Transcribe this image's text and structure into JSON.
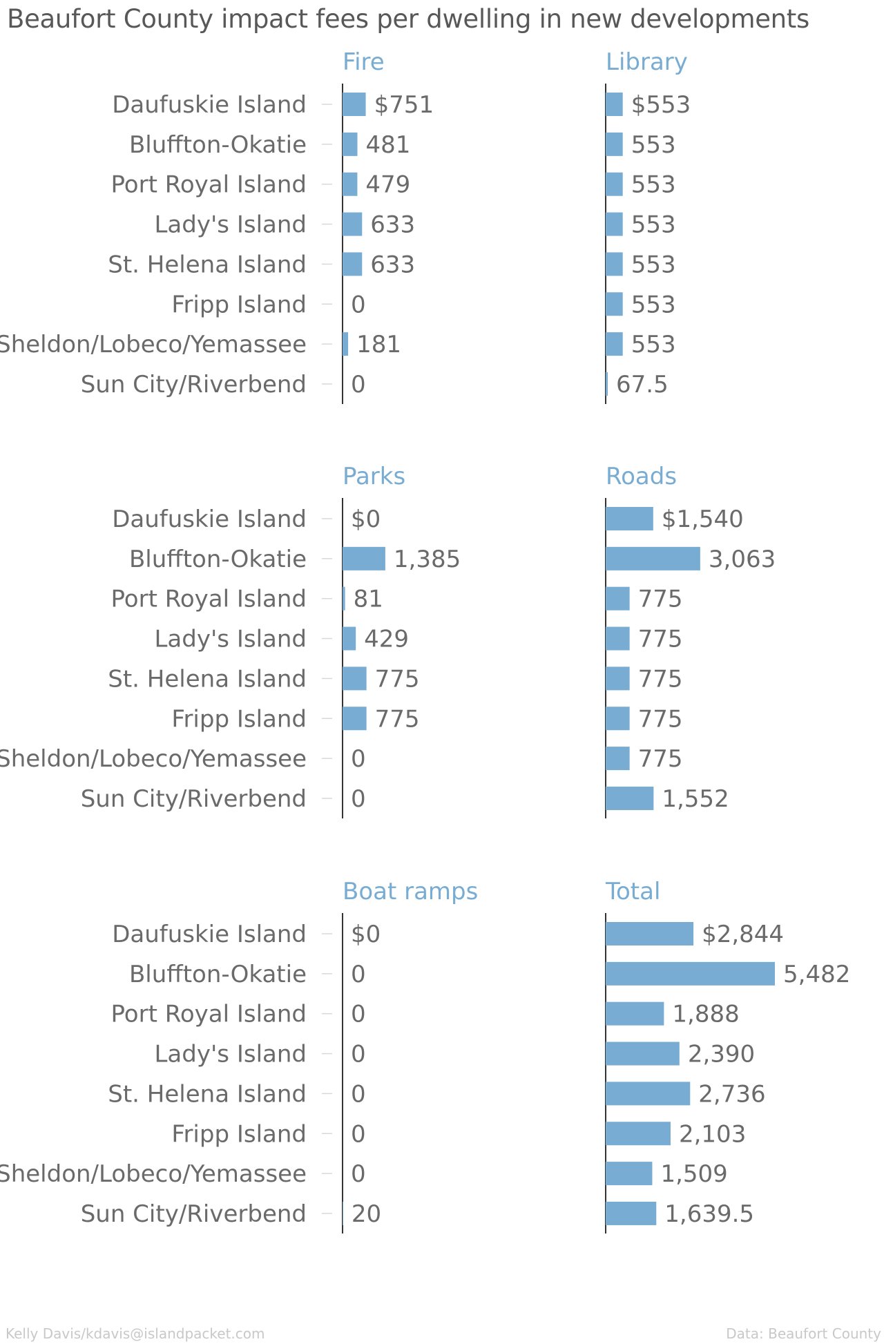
{
  "chart_data": {
    "type": "bar",
    "title": "Beaufort County impact fees per dwelling in new developments",
    "categories": [
      "Daufuskie Island",
      "Bluffton-Okatie",
      "Port Royal Island",
      "Lady's Island",
      "St. Helena Island",
      "Fripp Island",
      "Sheldon/Lobeco/Yemassee",
      "Sun City/Riverbend"
    ],
    "series": [
      {
        "name": "Fire",
        "values": [
          751,
          481,
          479,
          633,
          633,
          0,
          181,
          0
        ],
        "labels": [
          "$751",
          "481",
          "479",
          "633",
          "633",
          "0",
          "181",
          "0"
        ]
      },
      {
        "name": "Library",
        "values": [
          553,
          553,
          553,
          553,
          553,
          553,
          553,
          67.5
        ],
        "labels": [
          "$553",
          "553",
          "553",
          "553",
          "553",
          "553",
          "553",
          "67.5"
        ]
      },
      {
        "name": "Parks",
        "values": [
          0,
          1385,
          81,
          429,
          775,
          775,
          0,
          0
        ],
        "labels": [
          "$0",
          "1,385",
          "81",
          "429",
          "775",
          "775",
          "0",
          "0"
        ]
      },
      {
        "name": "Roads",
        "values": [
          1540,
          3063,
          775,
          775,
          775,
          775,
          775,
          1552
        ],
        "labels": [
          "$1,540",
          "3,063",
          "775",
          "775",
          "775",
          "775",
          "775",
          "1,552"
        ]
      },
      {
        "name": "Boat ramps",
        "values": [
          0,
          0,
          0,
          0,
          0,
          0,
          0,
          20
        ],
        "labels": [
          "$0",
          "0",
          "0",
          "0",
          "0",
          "0",
          "0",
          "20"
        ]
      },
      {
        "name": "Total",
        "values": [
          2844,
          5482,
          1888,
          2390,
          2736,
          2103,
          1509,
          1639.5
        ],
        "labels": [
          "$2,844",
          "5,482",
          "1,888",
          "2,390",
          "2,736",
          "2,103",
          "1,509",
          "1,639.5"
        ]
      }
    ],
    "xlim": [
      0,
      5482
    ],
    "grid": false,
    "bar_color": "#78acd2",
    "title_color": "#78acd2"
  },
  "credits": {
    "author": "Kelly Davis/kdavis@islandpacket.com",
    "source": "Data: Beaufort County"
  }
}
